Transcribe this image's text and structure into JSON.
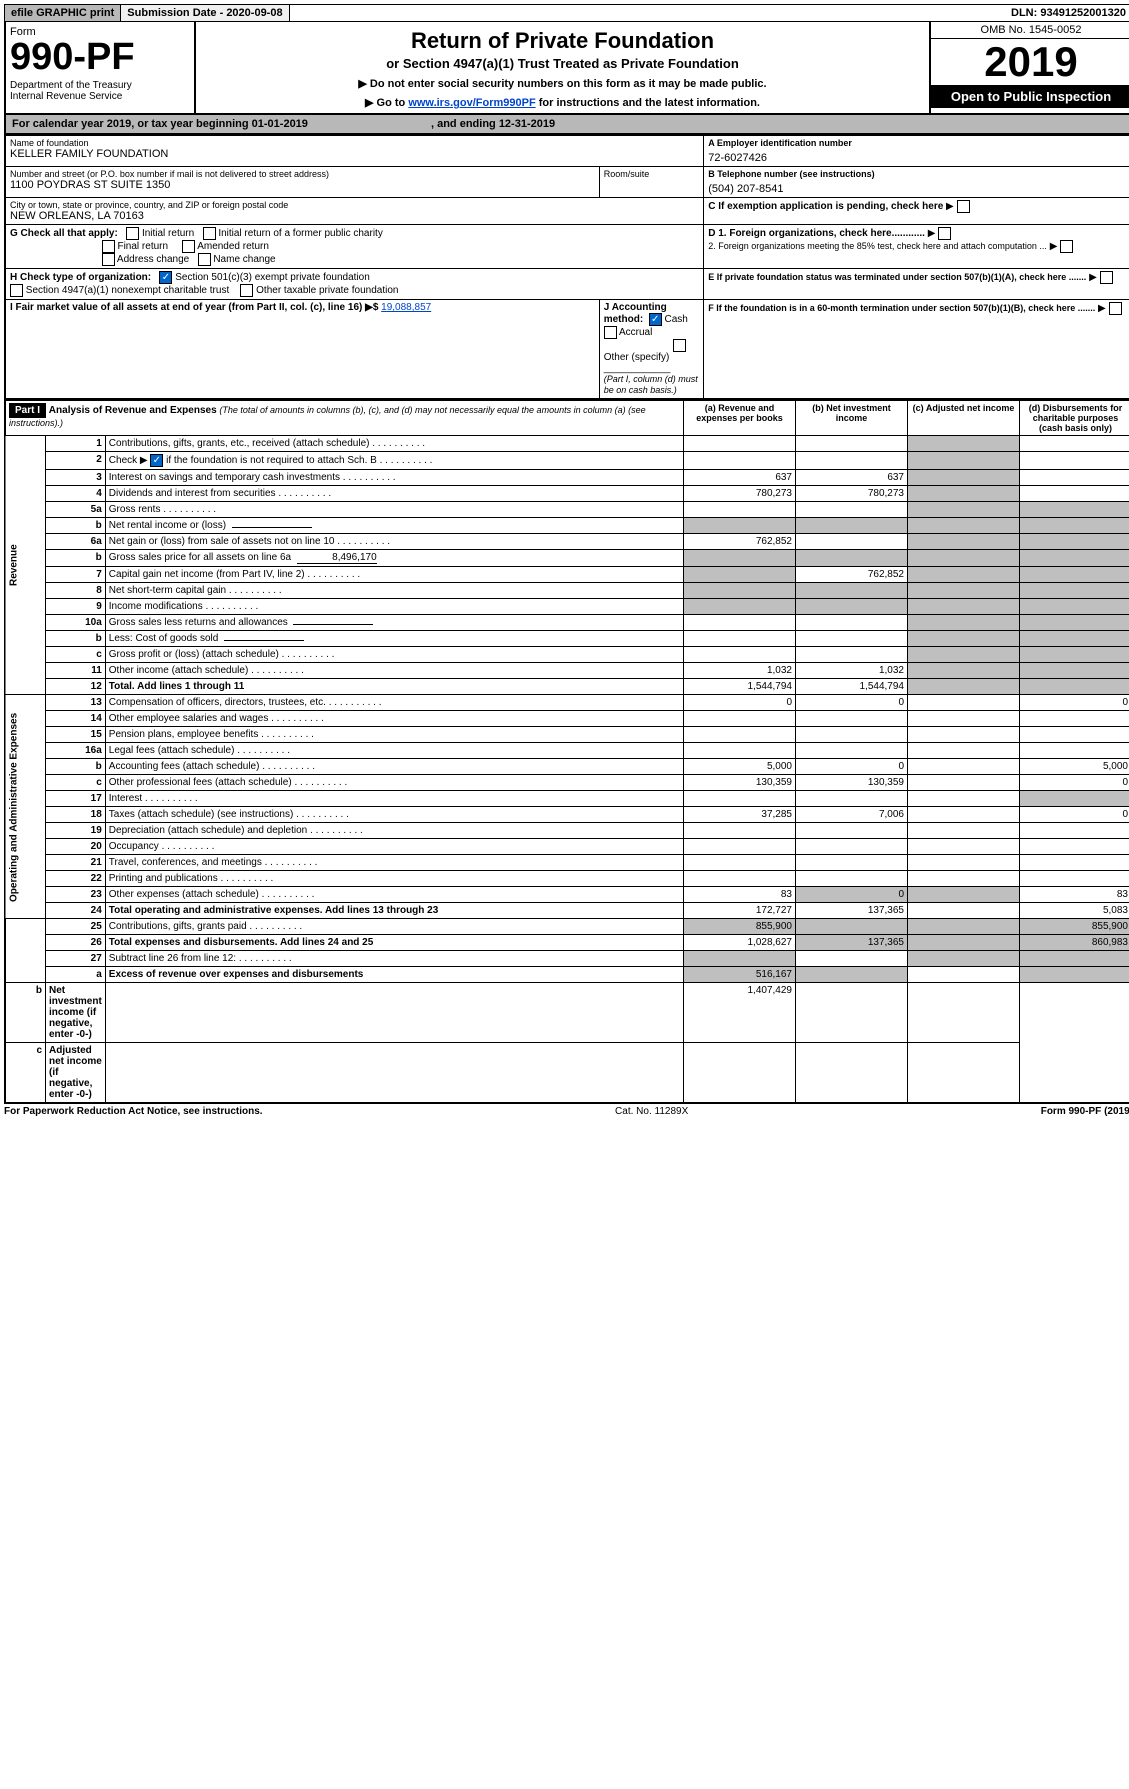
{
  "top": {
    "efile": "efile GRAPHIC print",
    "subm": "Submission Date - 2020-09-08",
    "dln": "DLN: 93491252001320"
  },
  "hdr": {
    "form": "Form",
    "formNo": "990-PF",
    "dept": "Department of the Treasury",
    "irs": "Internal Revenue Service",
    "title": "Return of Private Foundation",
    "sub": "or Section 4947(a)(1) Trust Treated as Private Foundation",
    "note1": "▶ Do not enter social security numbers on this form as it may be made public.",
    "note2": "▶ Go to ",
    "link": "www.irs.gov/Form990PF",
    "note3": " for instructions and the latest information.",
    "omb": "OMB No. 1545-0052",
    "year": "2019",
    "open": "Open to Public Inspection"
  },
  "cal": "For calendar year 2019, or tax year beginning 01-01-2019",
  "calEnd": ", and ending 12-31-2019",
  "info": {
    "nameLbl": "Name of foundation",
    "name": "KELLER FAMILY FOUNDATION",
    "einLbl": "A Employer identification number",
    "ein": "72-6027426",
    "addrLbl": "Number and street (or P.O. box number if mail is not delivered to street address)",
    "addr": "1100 POYDRAS ST SUITE 1350",
    "roomLbl": "Room/suite",
    "telLbl": "B Telephone number (see instructions)",
    "tel": "(504) 207-8541",
    "cityLbl": "City or town, state or province, country, and ZIP or foreign postal code",
    "city": "NEW ORLEANS, LA  70163",
    "cLbl": "C If exemption application is pending, check here",
    "gLbl": "G Check all that apply:",
    "g1": "Initial return",
    "g2": "Initial return of a former public charity",
    "g3": "Final return",
    "g4": "Amended return",
    "g5": "Address change",
    "g6": "Name change",
    "d1": "D 1. Foreign organizations, check here............",
    "d2": "2. Foreign organizations meeting the 85% test, check here and attach computation ...",
    "hLbl": "H Check type of organization:",
    "h1": "Section 501(c)(3) exempt private foundation",
    "h2": "Section 4947(a)(1) nonexempt charitable trust",
    "h3": "Other taxable private foundation",
    "eLbl": "E If private foundation status was terminated under section 507(b)(1)(A), check here .......",
    "iLbl": "I Fair market value of all assets at end of year (from Part II, col. (c), line 16) ▶$",
    "iVal": "19,088,857",
    "jLbl": "J Accounting method:",
    "j1": "Cash",
    "j2": "Accrual",
    "j3": "Other (specify)",
    "jNote": "(Part I, column (d) must be on cash basis.)",
    "fLbl": "F If the foundation is in a 60-month termination under section 507(b)(1)(B), check here ......."
  },
  "part1": {
    "hdr": "Part I",
    "title": "Analysis of Revenue and Expenses",
    "sub": "(The total of amounts in columns (b), (c), and (d) may not necessarily equal the amounts in column (a) (see instructions).)",
    "colA": "(a)   Revenue and expenses per books",
    "colB": "(b)   Net investment income",
    "colC": "(c)   Adjusted net income",
    "colD": "(d)   Disbursements for charitable purposes (cash basis only)"
  },
  "sects": {
    "rev": "Revenue",
    "exp": "Operating and Administrative Expenses"
  },
  "rows": [
    {
      "n": "1",
      "d": "Contributions, gifts, grants, etc., received (attach schedule)"
    },
    {
      "n": "2",
      "d": "Check ▶",
      "d2": "if the foundation is not required to attach Sch. B",
      "cb": true
    },
    {
      "n": "3",
      "d": "Interest on savings and temporary cash investments",
      "a": "637",
      "b": "637"
    },
    {
      "n": "4",
      "d": "Dividends and interest from securities",
      "a": "780,273",
      "b": "780,273"
    },
    {
      "n": "5a",
      "d": "Gross rents"
    },
    {
      "n": "b",
      "d": "Net rental income or (loss)",
      "inline": true
    },
    {
      "n": "6a",
      "d": "Net gain or (loss) from sale of assets not on line 10",
      "a": "762,852"
    },
    {
      "n": "b",
      "d": "Gross sales price for all assets on line 6a",
      "inline": true,
      "inlineVal": "8,496,170"
    },
    {
      "n": "7",
      "d": "Capital gain net income (from Part IV, line 2)",
      "b": "762,852"
    },
    {
      "n": "8",
      "d": "Net short-term capital gain"
    },
    {
      "n": "9",
      "d": "Income modifications"
    },
    {
      "n": "10a",
      "d": "Gross sales less returns and allowances",
      "inline": true
    },
    {
      "n": "b",
      "d": "Less: Cost of goods sold",
      "inline": true
    },
    {
      "n": "c",
      "d": "Gross profit or (loss) (attach schedule)"
    },
    {
      "n": "11",
      "d": "Other income (attach schedule)",
      "a": "1,032",
      "b": "1,032"
    },
    {
      "n": "12",
      "d": "Total. Add lines 1 through 11",
      "a": "1,544,794",
      "b": "1,544,794",
      "bold": true
    },
    {
      "n": "13",
      "d": "Compensation of officers, directors, trustees, etc.",
      "a": "0",
      "b": "0",
      "dCol": "0"
    },
    {
      "n": "14",
      "d": "Other employee salaries and wages"
    },
    {
      "n": "15",
      "d": "Pension plans, employee benefits"
    },
    {
      "n": "16a",
      "d": "Legal fees (attach schedule)"
    },
    {
      "n": "b",
      "d": "Accounting fees (attach schedule)",
      "a": "5,000",
      "b": "0",
      "dCol": "5,000"
    },
    {
      "n": "c",
      "d": "Other professional fees (attach schedule)",
      "a": "130,359",
      "b": "130,359",
      "dCol": "0"
    },
    {
      "n": "17",
      "d": "Interest"
    },
    {
      "n": "18",
      "d": "Taxes (attach schedule) (see instructions)",
      "a": "37,285",
      "b": "7,006",
      "dCol": "0"
    },
    {
      "n": "19",
      "d": "Depreciation (attach schedule) and depletion"
    },
    {
      "n": "20",
      "d": "Occupancy"
    },
    {
      "n": "21",
      "d": "Travel, conferences, and meetings"
    },
    {
      "n": "22",
      "d": "Printing and publications"
    },
    {
      "n": "23",
      "d": "Other expenses (attach schedule)",
      "a": "83",
      "b": "0",
      "dCol": "83"
    },
    {
      "n": "24",
      "d": "Total operating and administrative expenses. Add lines 13 through 23",
      "a": "172,727",
      "b": "137,365",
      "dCol": "5,083",
      "bold": true
    },
    {
      "n": "25",
      "d": "Contributions, gifts, grants paid",
      "a": "855,900",
      "dCol": "855,900"
    },
    {
      "n": "26",
      "d": "Total expenses and disbursements. Add lines 24 and 25",
      "a": "1,028,627",
      "b": "137,365",
      "dCol": "860,983",
      "bold": true
    },
    {
      "n": "27",
      "d": "Subtract line 26 from line 12:"
    },
    {
      "n": "a",
      "d": "Excess of revenue over expenses and disbursements",
      "a": "516,167",
      "bold": true
    },
    {
      "n": "b",
      "d": "Net investment income (if negative, enter -0-)",
      "b": "1,407,429",
      "bold": true
    },
    {
      "n": "c",
      "d": "Adjusted net income (if negative, enter -0-)",
      "bold": true
    }
  ],
  "foot": {
    "l": "For Paperwork Reduction Act Notice, see instructions.",
    "c": "Cat. No. 11289X",
    "r": "Form 990-PF (2019)"
  }
}
